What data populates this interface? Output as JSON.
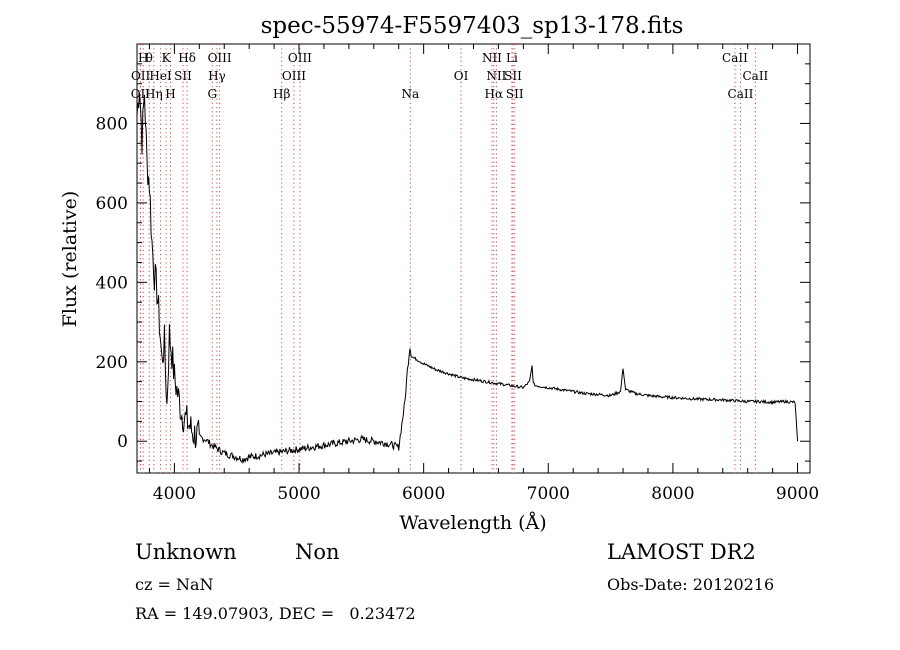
{
  "chart_data": {
    "type": "line",
    "title": "spec-55974-F5597403_sp13-178.fits",
    "xlabel": "Wavelength (Å)",
    "ylabel": "Flux (relative)",
    "xlim": [
      3700,
      9100
    ],
    "ylim": [
      -80,
      1000
    ],
    "x_ticks": [
      4000,
      5000,
      6000,
      7000,
      8000,
      9000
    ],
    "y_ticks": [
      0,
      200,
      400,
      600,
      800
    ],
    "grid": false,
    "series": [
      {
        "x": [
          3700,
          3720,
          3740,
          3760,
          3780,
          3800,
          3820,
          3840,
          3860,
          3880,
          3900,
          3920,
          3940,
          3960,
          3980,
          4000,
          4020,
          4040,
          4060,
          4080,
          4100,
          4120,
          4150,
          4200,
          4250,
          4300,
          4350,
          4400,
          4450,
          4500,
          4550,
          4600,
          4700,
          4800,
          4900,
          5000,
          5100,
          5200,
          5300,
          5400,
          5500,
          5600,
          5700,
          5800,
          5850,
          5870,
          5890,
          5900,
          5920,
          5950,
          6000,
          6100,
          6200,
          6300,
          6400,
          6500,
          6600,
          6700,
          6800,
          6850,
          6870,
          6880,
          6900,
          7000,
          7100,
          7200,
          7300,
          7400,
          7500,
          7580,
          7600,
          7620,
          7700,
          7800,
          7900,
          8000,
          8100,
          8200,
          8300,
          8400,
          8500,
          8600,
          8700,
          8800,
          8900,
          8980,
          9000
        ],
        "y": [
          820,
          900,
          760,
          880,
          700,
          650,
          500,
          420,
          380,
          300,
          200,
          250,
          90,
          270,
          220,
          160,
          130,
          100,
          70,
          60,
          50,
          40,
          20,
          10,
          5,
          -10,
          -20,
          -30,
          -35,
          -40,
          -45,
          -40,
          -35,
          -30,
          -25,
          -20,
          -15,
          -10,
          -5,
          0,
          5,
          0,
          -5,
          -15,
          100,
          180,
          240,
          215,
          210,
          205,
          195,
          180,
          170,
          160,
          155,
          150,
          145,
          140,
          135,
          150,
          190,
          145,
          140,
          135,
          130,
          125,
          120,
          118,
          115,
          125,
          185,
          130,
          120,
          115,
          112,
          110,
          108,
          106,
          105,
          104,
          102,
          100,
          100,
          98,
          100,
          98,
          0
        ]
      }
    ],
    "spectral_lines": [
      {
        "label": "OII",
        "wave": 3727,
        "row": 3
      },
      {
        "label": "H",
        "wave": 3750,
        "row": 1
      },
      {
        "label": "θ",
        "wave": 3798,
        "row": 1
      },
      {
        "label": "OII",
        "wave": 3729,
        "row": 2
      },
      {
        "label": "Hη",
        "wave": 3835,
        "row": 3
      },
      {
        "label": "K",
        "wave": 3934,
        "row": 1
      },
      {
        "label": "HeI",
        "wave": 3889,
        "row": 2
      },
      {
        "label": "SII",
        "wave": 4069,
        "row": 2
      },
      {
        "label": "H",
        "wave": 3969,
        "row": 3
      },
      {
        "label": "Hδ",
        "wave": 4102,
        "row": 1
      },
      {
        "label": "OIII",
        "wave": 4363,
        "row": 1
      },
      {
        "label": "Hγ",
        "wave": 4341,
        "row": 2
      },
      {
        "label": "G",
        "wave": 4304,
        "row": 3
      },
      {
        "label": "OIII",
        "wave": 5007,
        "row": 1
      },
      {
        "label": "OIII",
        "wave": 4959,
        "row": 2
      },
      {
        "label": "Hβ",
        "wave": 4861,
        "row": 3
      },
      {
        "label": "Na",
        "wave": 5893,
        "row": 3
      },
      {
        "label": "OI",
        "wave": 6300,
        "row": 2
      },
      {
        "label": "NII",
        "wave": 6548,
        "row": 1
      },
      {
        "label": "Li",
        "wave": 6708,
        "row": 1
      },
      {
        "label": "NII",
        "wave": 6584,
        "row": 2
      },
      {
        "label": "SII",
        "wave": 6717,
        "row": 2
      },
      {
        "label": "Hα",
        "wave": 6563,
        "row": 3
      },
      {
        "label": "SII",
        "wave": 6731,
        "row": 3
      },
      {
        "label": "CaII",
        "wave": 8498,
        "row": 1
      },
      {
        "label": "CaII",
        "wave": 8662,
        "row": 2
      },
      {
        "label": "CaII",
        "wave": 8542,
        "row": 3
      }
    ]
  },
  "info": {
    "class": "Unknown",
    "subclass": "Non",
    "survey": "LAMOST DR2",
    "cz": "cz = NaN",
    "obs_date": "Obs-Date: 20120216",
    "coords": "RA = 149.07903, DEC =   0.23472"
  }
}
